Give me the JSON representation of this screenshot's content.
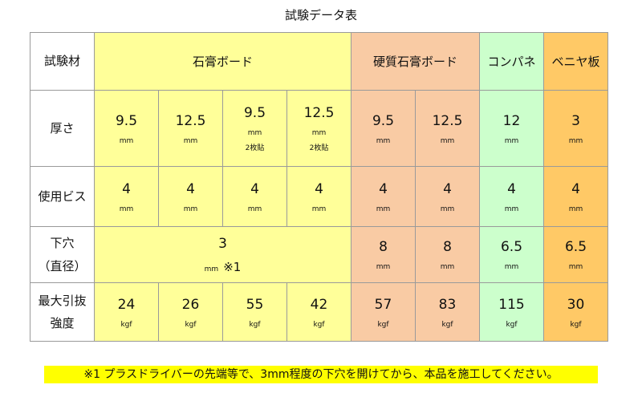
{
  "title": "試験データ表",
  "row_headers": [
    "試験材",
    "厚さ",
    "使用ビス",
    "下穴",
    "（直径）",
    "最大引抜",
    "強度"
  ],
  "groups": [
    "石膏ボード",
    "硬質石膏ボード",
    "コンパネ",
    "ベニヤ板"
  ],
  "colors": {
    "gypsum": "#FFFF99",
    "hard_gypsum": "#F9CBA4",
    "konpane": "#CCFFCC",
    "veneer": "#FFC966"
  },
  "thickness": [
    {
      "v": "9.5",
      "u": "mm"
    },
    {
      "v": "12.5",
      "u": "mm"
    },
    {
      "v": "9.5",
      "u": "mm",
      "note": "2枚貼"
    },
    {
      "v": "12.5",
      "u": "mm",
      "note": "2枚貼"
    },
    {
      "v": "9.5",
      "u": "mm"
    },
    {
      "v": "12.5",
      "u": "mm"
    },
    {
      "v": "12",
      "u": "mm"
    },
    {
      "v": "3",
      "u": "mm"
    }
  ],
  "screw": [
    {
      "v": "4",
      "u": "mm"
    },
    {
      "v": "4",
      "u": "mm"
    },
    {
      "v": "4",
      "u": "mm"
    },
    {
      "v": "4",
      "u": "mm"
    },
    {
      "v": "4",
      "u": "mm"
    },
    {
      "v": "4",
      "u": "mm"
    },
    {
      "v": "4",
      "u": "mm"
    },
    {
      "v": "4",
      "u": "mm"
    }
  ],
  "pilot": [
    {
      "v": "3",
      "u": "mm",
      "mark": "※1"
    },
    {
      "v": "8",
      "u": "mm"
    },
    {
      "v": "8",
      "u": "mm"
    },
    {
      "v": "6.5",
      "u": "mm"
    },
    {
      "v": "6.5",
      "u": "mm"
    }
  ],
  "strength": [
    {
      "v": "24",
      "u": "kgf"
    },
    {
      "v": "26",
      "u": "kgf"
    },
    {
      "v": "55",
      "u": "kgf"
    },
    {
      "v": "42",
      "u": "kgf"
    },
    {
      "v": "57",
      "u": "kgf"
    },
    {
      "v": "83",
      "u": "kgf"
    },
    {
      "v": "115",
      "u": "kgf"
    },
    {
      "v": "30",
      "u": "kgf"
    }
  ],
  "footnote": "※1 プラスドライバーの先端等で、3mm程度の下穴を開けてから、本品を施工してください。"
}
